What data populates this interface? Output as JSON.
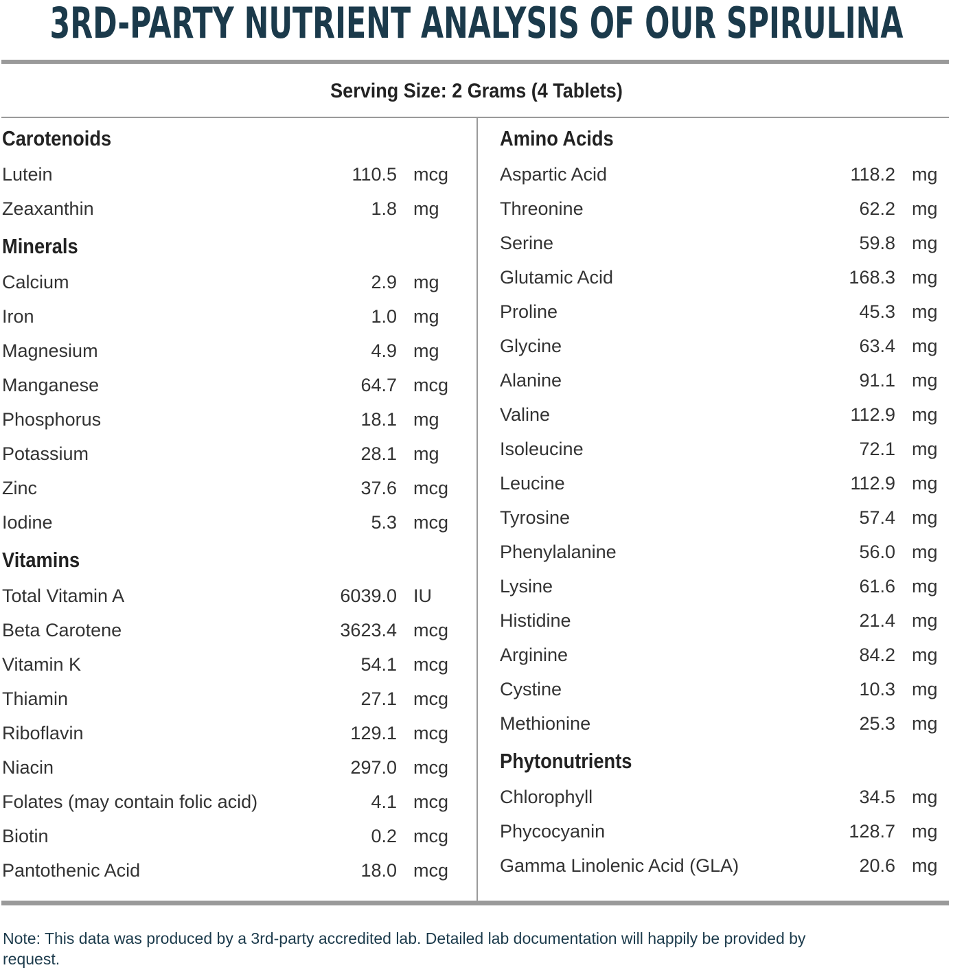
{
  "title": "3RD-PARTY NUTRIENT ANALYSIS OF OUR SPIRULINA",
  "serving_size": "Serving Size: 2 Grams (4 Tablets)",
  "columns": [
    {
      "sections": [
        {
          "heading": "Carotenoids",
          "rows": [
            [
              "Lutein",
              "110.5",
              "mcg"
            ],
            [
              "Zeaxanthin",
              "1.8",
              "mg"
            ]
          ]
        },
        {
          "heading": "Minerals",
          "rows": [
            [
              "Calcium",
              "2.9",
              "mg"
            ],
            [
              "Iron",
              "1.0",
              "mg"
            ],
            [
              "Magnesium",
              "4.9",
              "mg"
            ],
            [
              "Manganese",
              "64.7",
              "mcg"
            ],
            [
              "Phosphorus",
              "18.1",
              "mg"
            ],
            [
              "Potassium",
              "28.1",
              "mg"
            ],
            [
              "Zinc",
              "37.6",
              "mcg"
            ],
            [
              "Iodine",
              "5.3",
              "mcg"
            ]
          ]
        },
        {
          "heading": "Vitamins",
          "rows": [
            [
              "Total Vitamin A",
              "6039.0",
              "IU"
            ],
            [
              "Beta Carotene",
              "3623.4",
              "mcg"
            ],
            [
              "Vitamin K",
              "54.1",
              "mcg"
            ],
            [
              "Thiamin",
              "27.1",
              "mcg"
            ],
            [
              "Riboflavin",
              "129.1",
              "mcg"
            ],
            [
              "Niacin",
              "297.0",
              "mcg"
            ],
            [
              "Folates (may contain folic acid)",
              "4.1",
              "mcg"
            ],
            [
              "Biotin",
              "0.2",
              "mcg"
            ],
            [
              "Pantothenic Acid",
              "18.0",
              "mcg"
            ]
          ]
        }
      ]
    },
    {
      "sections": [
        {
          "heading": "Amino Acids",
          "rows": [
            [
              "Aspartic Acid",
              "118.2",
              "mg"
            ],
            [
              "Threonine",
              "62.2",
              "mg"
            ],
            [
              "Serine",
              "59.8",
              "mg"
            ],
            [
              "Glutamic Acid",
              "168.3",
              "mg"
            ],
            [
              "Proline",
              "45.3",
              "mg"
            ],
            [
              "Glycine",
              "63.4",
              "mg"
            ],
            [
              "Alanine",
              "91.1",
              "mg"
            ],
            [
              "Valine",
              "112.9",
              "mg"
            ],
            [
              "Isoleucine",
              "72.1",
              "mg"
            ],
            [
              "Leucine",
              "112.9",
              "mg"
            ],
            [
              "Tyrosine",
              "57.4",
              "mg"
            ],
            [
              "Phenylalanine",
              "56.0",
              "mg"
            ],
            [
              "Lysine",
              "61.6",
              "mg"
            ],
            [
              "Histidine",
              "21.4",
              "mg"
            ],
            [
              "Arginine",
              "84.2",
              "mg"
            ],
            [
              "Cystine",
              "10.3",
              "mg"
            ],
            [
              "Methionine",
              "25.3",
              "mg"
            ]
          ]
        },
        {
          "heading": "Phytonutrients",
          "rows": [
            [
              "Chlorophyll",
              "34.5",
              "mg"
            ],
            [
              "Phycocyanin",
              "128.7",
              "mg"
            ],
            [
              "Gamma Linolenic Acid (GLA)",
              "20.6",
              "mg"
            ]
          ]
        }
      ]
    }
  ],
  "note": "Note: This data was produced by a 3rd-party accredited lab. Detailed lab documentation will happily be provided by request."
}
